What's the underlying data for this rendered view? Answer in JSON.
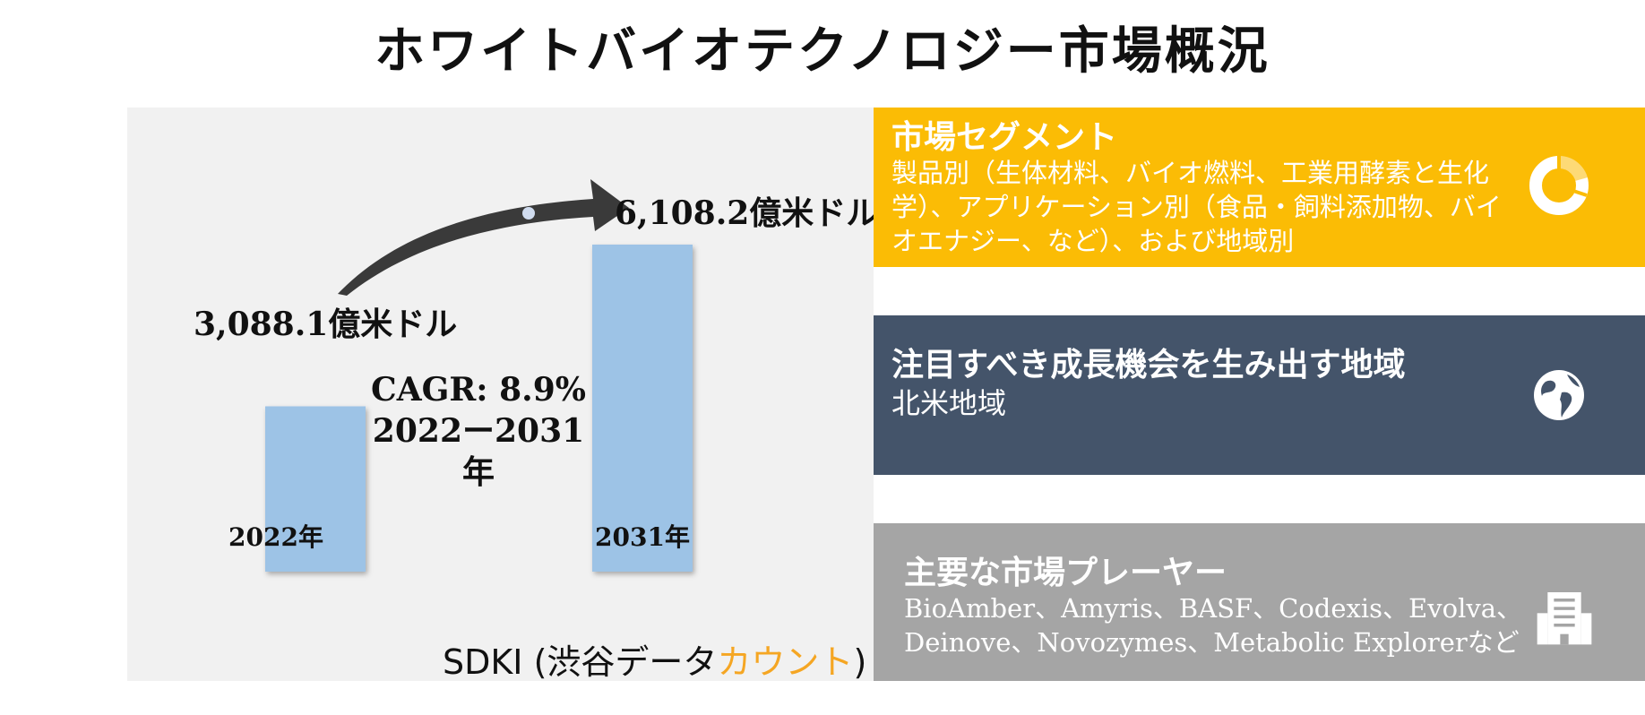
{
  "title": "ホワイトバイオテクノロジー市場概況",
  "chart_data": {
    "type": "bar",
    "categories": [
      "2022年",
      "2031年"
    ],
    "values": [
      3088.1,
      6108.2
    ],
    "value_labels": [
      "3,088.1億米ドル",
      "6,108.2億米ドル"
    ],
    "cagr_line1": "CAGR: 8.9%",
    "cagr_line2": "2022ー2031年",
    "bar_color": "#9dc3e6"
  },
  "source": {
    "prefix": "SDKI (渋谷データ",
    "accent": "カウント",
    "suffix": ")",
    "accent_color": "#f5a623"
  },
  "segment": {
    "heading": "市場セグメント",
    "body": "製品別（生体材料、バイオ燃料、工業用酵素と生化学）、アプリケーション別（食品・飼料添加物、バイオエナジー、など）、および地域別",
    "icon": "donut-chart-icon",
    "color": "#fbbc05"
  },
  "region": {
    "heading": "注目すべき成長機会を生み出す地域",
    "body": "北米地域",
    "icon": "globe-icon",
    "color": "#44546a"
  },
  "players": {
    "heading": "主要な市場プレーヤー",
    "body": "BioAmber、Amyris、BASF、Codexis、Evolva、Deinove、Novozymes、Metabolic Explorerなど",
    "icon": "building-icon",
    "color": "#a5a5a5"
  }
}
